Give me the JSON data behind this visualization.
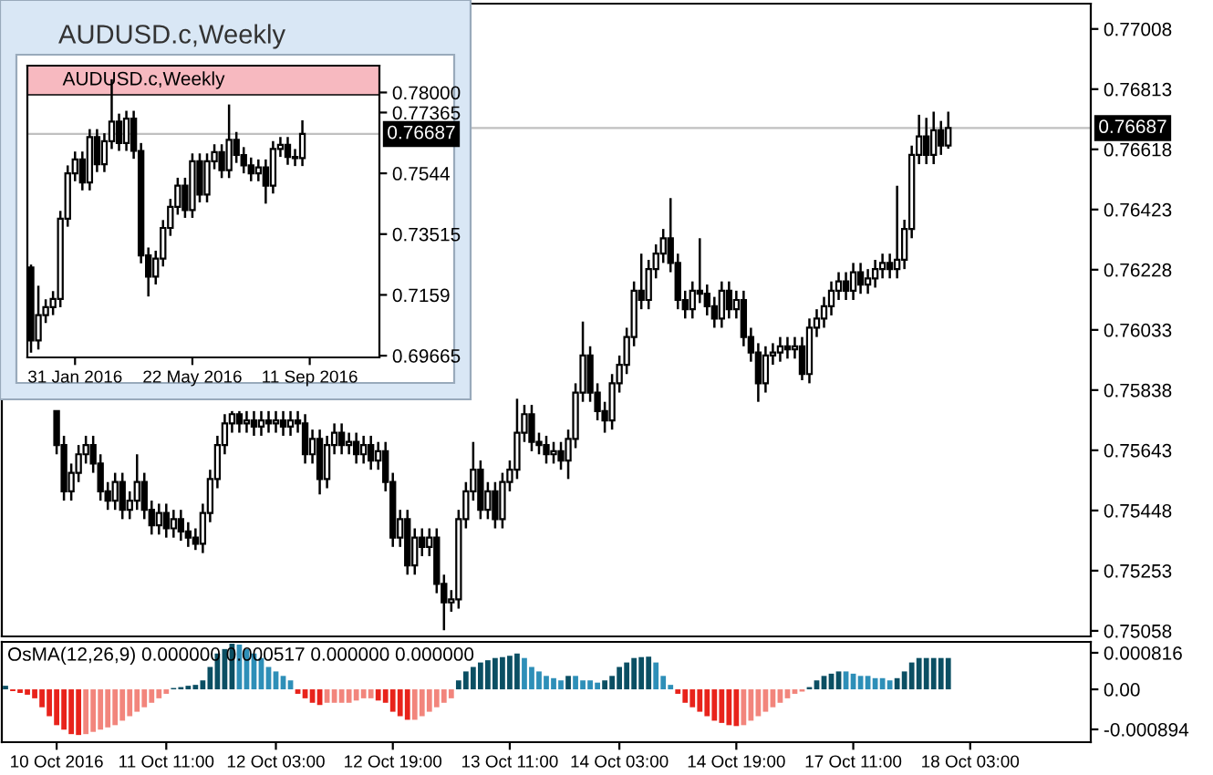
{
  "chart_data": [
    {
      "type": "candlestick",
      "categories": [
        null,
        null,
        null,
        null,
        null,
        null,
        null,
        null,
        null,
        null,
        null,
        null,
        null,
        null,
        null,
        null,
        null,
        null,
        null,
        null,
        null,
        null,
        null,
        null,
        null,
        null,
        null,
        null,
        null,
        null,
        null,
        null,
        null,
        null,
        null,
        null,
        null,
        null,
        null,
        null,
        null,
        null,
        null,
        null,
        null,
        null,
        null,
        null,
        null,
        null,
        null,
        null,
        null,
        null,
        null,
        null,
        null,
        null,
        null,
        null,
        null,
        null,
        null,
        null,
        null,
        null,
        null,
        null,
        null,
        null,
        null,
        null,
        null,
        null,
        null,
        null,
        null,
        null,
        null,
        null,
        null,
        null,
        null,
        null,
        null,
        null,
        null,
        null,
        null,
        null,
        null,
        null,
        null,
        null,
        null,
        null,
        null,
        null,
        null,
        null,
        null,
        null,
        null,
        null,
        null,
        null,
        null,
        null,
        null,
        null,
        null,
        null,
        null,
        null,
        null,
        null,
        null,
        null,
        null,
        null,
        null,
        null,
        null,
        null,
        null,
        null,
        null,
        null,
        null,
        null,
        null,
        null,
        null,
        null,
        null,
        null,
        null,
        null,
        null,
        null,
        null,
        null,
        null,
        null,
        null,
        null,
        null,
        null,
        null
      ],
      "ohlc": [
        null,
        null,
        null,
        null,
        null,
        null,
        null,
        [
          0.7577,
          0.7577,
          0.7563,
          0.7566
        ],
        [
          0.7566,
          0.7569,
          0.7548,
          0.7551
        ],
        [
          0.7551,
          0.756,
          0.7548,
          0.7557
        ],
        [
          0.7557,
          0.7566,
          0.7554,
          0.7563
        ],
        [
          0.7563,
          0.7569,
          0.756,
          0.7566
        ],
        [
          0.7566,
          0.7569,
          0.7557,
          0.756
        ],
        [
          0.756,
          0.7563,
          0.7548,
          0.7551
        ],
        [
          0.7551,
          0.7554,
          0.7545,
          0.7548
        ],
        [
          0.7548,
          0.7557,
          0.7545,
          0.7554
        ],
        [
          0.7554,
          0.7557,
          0.7542,
          0.7545
        ],
        [
          0.7545,
          0.7551,
          0.7542,
          0.7548
        ],
        [
          0.7548,
          0.7563,
          0.7545,
          0.7554
        ],
        [
          0.7554,
          0.7557,
          0.7542,
          0.7545
        ],
        [
          0.7545,
          0.7548,
          0.7537,
          0.754
        ],
        [
          0.754,
          0.7547,
          0.7537,
          0.7544
        ],
        [
          0.7544,
          0.7547,
          0.7536,
          0.7539
        ],
        [
          0.7539,
          0.7545,
          0.7536,
          0.7542
        ],
        [
          0.7542,
          0.7545,
          0.7535,
          0.7538
        ],
        [
          0.7538,
          0.7541,
          0.7533,
          0.7536
        ],
        [
          0.7536,
          0.7539,
          0.7532,
          0.7534
        ],
        [
          0.7534,
          0.7547,
          0.7531,
          0.7544
        ],
        [
          0.7544,
          0.7558,
          0.7541,
          0.7555
        ],
        [
          0.7555,
          0.7569,
          0.7552,
          0.7566
        ],
        [
          0.7566,
          0.7576,
          0.7563,
          0.7573
        ],
        [
          0.7573,
          0.7577,
          0.757,
          0.7576
        ],
        [
          0.7576,
          0.7577,
          0.757,
          0.7573
        ],
        [
          0.7573,
          0.7577,
          0.757,
          0.7574
        ],
        [
          0.7574,
          0.7577,
          0.7569,
          0.7572
        ],
        [
          0.7572,
          0.7577,
          0.7569,
          0.7574
        ],
        [
          0.7574,
          0.7577,
          0.757,
          0.7573
        ],
        [
          0.7573,
          0.7577,
          0.757,
          0.7574
        ],
        [
          0.7574,
          0.7577,
          0.7569,
          0.7572
        ],
        [
          0.7572,
          0.7577,
          0.7569,
          0.7574
        ],
        [
          0.7574,
          0.7577,
          0.757,
          0.7573
        ],
        [
          0.7573,
          0.7576,
          0.756,
          0.7563
        ],
        [
          0.7563,
          0.7571,
          0.756,
          0.7568
        ],
        [
          0.7568,
          0.7571,
          0.755,
          0.7555
        ],
        [
          0.7555,
          0.7569,
          0.7552,
          0.7566
        ],
        [
          0.7566,
          0.7573,
          0.7563,
          0.757
        ],
        [
          0.757,
          0.7573,
          0.7563,
          0.7566
        ],
        [
          0.7566,
          0.757,
          0.7563,
          0.7567
        ],
        [
          0.7567,
          0.757,
          0.756,
          0.7563
        ],
        [
          0.7563,
          0.7569,
          0.756,
          0.7566
        ],
        [
          0.7566,
          0.7569,
          0.7558,
          0.7561
        ],
        [
          0.7561,
          0.7567,
          0.7558,
          0.7564
        ],
        [
          0.7564,
          0.7567,
          0.7551,
          0.7554
        ],
        [
          0.7554,
          0.7557,
          0.7533,
          0.7536
        ],
        [
          0.7536,
          0.7545,
          0.7533,
          0.7542
        ],
        [
          0.7542,
          0.7545,
          0.7524,
          0.7527
        ],
        [
          0.7527,
          0.7539,
          0.7524,
          0.7536
        ],
        [
          0.7536,
          0.7539,
          0.753,
          0.7533
        ],
        [
          0.7533,
          0.7539,
          0.753,
          0.7536
        ],
        [
          0.7536,
          0.7539,
          0.7518,
          0.7521
        ],
        [
          0.7521,
          0.7524,
          0.7506,
          0.7515
        ],
        [
          0.7515,
          0.7519,
          0.7512,
          0.7516
        ],
        [
          0.7516,
          0.7545,
          0.7513,
          0.7542
        ],
        [
          0.7542,
          0.7554,
          0.7539,
          0.7551
        ],
        [
          0.7551,
          0.7567,
          0.7548,
          0.7558
        ],
        [
          0.7558,
          0.7561,
          0.7542,
          0.7545
        ],
        [
          0.7545,
          0.7554,
          0.7542,
          0.7551
        ],
        [
          0.7551,
          0.7554,
          0.7539,
          0.7542
        ],
        [
          0.7542,
          0.7557,
          0.7539,
          0.7554
        ],
        [
          0.7554,
          0.7561,
          0.7551,
          0.7558
        ],
        [
          0.7558,
          0.7581,
          0.7555,
          0.757
        ],
        [
          0.757,
          0.7579,
          0.7567,
          0.7576
        ],
        [
          0.7576,
          0.7579,
          0.7564,
          0.7567
        ],
        [
          0.7567,
          0.757,
          0.7563,
          0.7566
        ],
        [
          0.7566,
          0.7569,
          0.756,
          0.7563
        ],
        [
          0.7563,
          0.7567,
          0.756,
          0.7564
        ],
        [
          0.7564,
          0.7567,
          0.7558,
          0.7561
        ],
        [
          0.7561,
          0.7571,
          0.7555,
          0.7568
        ],
        [
          0.7568,
          0.7586,
          0.7565,
          0.7583
        ],
        [
          0.7583,
          0.7606,
          0.758,
          0.7595
        ],
        [
          0.7595,
          0.7598,
          0.758,
          0.7583
        ],
        [
          0.7583,
          0.7586,
          0.7574,
          0.7577
        ],
        [
          0.7577,
          0.758,
          0.757,
          0.7574
        ],
        [
          0.7574,
          0.7589,
          0.7571,
          0.7586
        ],
        [
          0.7586,
          0.7595,
          0.7583,
          0.7592
        ],
        [
          0.7592,
          0.7604,
          0.7589,
          0.7601
        ],
        [
          0.7601,
          0.7619,
          0.7598,
          0.7616
        ],
        [
          0.7616,
          0.7628,
          0.761,
          0.7613
        ],
        [
          0.7613,
          0.7626,
          0.761,
          0.7623
        ],
        [
          0.7623,
          0.7631,
          0.762,
          0.7628
        ],
        [
          0.7628,
          0.7636,
          0.7625,
          0.7633
        ],
        [
          0.7633,
          0.7646,
          0.7622,
          0.7625
        ],
        [
          0.7625,
          0.7628,
          0.761,
          0.7613
        ],
        [
          0.7613,
          0.7616,
          0.7607,
          0.761
        ],
        [
          0.761,
          0.7619,
          0.7607,
          0.7616
        ],
        [
          0.7616,
          0.7633,
          0.7612,
          0.7615
        ],
        [
          0.7615,
          0.7618,
          0.7608,
          0.7611
        ],
        [
          0.7611,
          0.7614,
          0.7604,
          0.7607
        ],
        [
          0.7607,
          0.7619,
          0.7604,
          0.7616
        ],
        [
          0.7616,
          0.7619,
          0.7607,
          0.761
        ],
        [
          0.761,
          0.7616,
          0.7607,
          0.7613
        ],
        [
          0.7613,
          0.7616,
          0.7598,
          0.7601
        ],
        [
          0.7601,
          0.7604,
          0.7593,
          0.7596
        ],
        [
          0.7596,
          0.7599,
          0.758,
          0.7586
        ],
        [
          0.7586,
          0.7598,
          0.7583,
          0.7595
        ],
        [
          0.7595,
          0.7599,
          0.7592,
          0.7596
        ],
        [
          0.7596,
          0.7601,
          0.7593,
          0.7598
        ],
        [
          0.7598,
          0.7601,
          0.7594,
          0.7597
        ],
        [
          0.7597,
          0.7601,
          0.7594,
          0.7598
        ],
        [
          0.7598,
          0.7601,
          0.7587,
          0.7589
        ],
        [
          0.7589,
          0.7607,
          0.7586,
          0.7604
        ],
        [
          0.7604,
          0.761,
          0.7601,
          0.7607
        ],
        [
          0.7607,
          0.7614,
          0.7604,
          0.7611
        ],
        [
          0.7611,
          0.7619,
          0.7608,
          0.7616
        ],
        [
          0.7616,
          0.7622,
          0.7613,
          0.7619
        ],
        [
          0.7619,
          0.7622,
          0.7613,
          0.7616
        ],
        [
          0.7616,
          0.7625,
          0.7613,
          0.7622
        ],
        [
          0.7622,
          0.7625,
          0.7615,
          0.7618
        ],
        [
          0.7618,
          0.7623,
          0.7615,
          0.762
        ],
        [
          0.762,
          0.7626,
          0.7617,
          0.7623
        ],
        [
          0.7623,
          0.7628,
          0.762,
          0.7625
        ],
        [
          0.7625,
          0.7628,
          0.762,
          0.7623
        ],
        [
          0.7623,
          0.765,
          0.762,
          0.7626
        ],
        [
          0.7626,
          0.7639,
          0.7623,
          0.7636
        ],
        [
          0.7636,
          0.7663,
          0.7633,
          0.766
        ],
        [
          0.766,
          0.7673,
          0.7657,
          0.7666
        ],
        [
          0.7666,
          0.7672,
          0.7657,
          0.766
        ],
        [
          0.766,
          0.7674,
          0.7657,
          0.7668
        ],
        [
          0.7668,
          0.7671,
          0.766,
          0.7663
        ],
        [
          0.7663,
          0.7674,
          0.7662,
          0.76687
        ],
        null,
        null,
        null,
        null,
        null,
        null,
        null,
        null,
        null,
        null,
        null,
        null,
        null,
        null,
        null,
        null,
        null,
        null,
        null
      ],
      "ylim": [
        0.7504,
        0.7709
      ],
      "yticks": [
        0.77008,
        0.76813,
        0.76618,
        0.76423,
        0.76228,
        0.76033,
        0.75838,
        0.75643,
        0.75448,
        0.75253,
        0.75058
      ],
      "ref_lines": [
        {
          "axis": "y",
          "value": 0.76687,
          "label": "0.76687",
          "color": "#c0c0c0"
        }
      ],
      "tick_labels": "y"
    },
    {
      "type": "bar",
      "title": "OsMA(12,26,9) 0.000000 0.000517 0.000000 0.000000",
      "categories": [
        null,
        null,
        null,
        null,
        null,
        null,
        null,
        "10 Oct 2016",
        null,
        null,
        null,
        null,
        null,
        null,
        null,
        null,
        null,
        null,
        null,
        null,
        null,
        null,
        "11 Oct 11:00",
        null,
        null,
        null,
        null,
        null,
        null,
        null,
        null,
        null,
        null,
        null,
        null,
        null,
        null,
        "12 Oct 03:00",
        null,
        null,
        null,
        null,
        null,
        null,
        null,
        null,
        null,
        null,
        null,
        null,
        null,
        null,
        null,
        "12 Oct 19:00",
        null,
        null,
        null,
        null,
        null,
        null,
        null,
        null,
        null,
        null,
        null,
        null,
        null,
        null,
        null,
        "13 Oct 11:00",
        null,
        null,
        null,
        null,
        null,
        null,
        null,
        null,
        null,
        null,
        null,
        null,
        null,
        null,
        "14 Oct 03:00",
        null,
        null,
        null,
        null,
        null,
        null,
        null,
        null,
        null,
        null,
        null,
        null,
        null,
        null,
        null,
        "14 Oct 19:00",
        null,
        null,
        null,
        null,
        null,
        null,
        null,
        null,
        null,
        null,
        null,
        null,
        null,
        null,
        null,
        "17 Oct 11:00",
        null,
        null,
        null,
        null,
        null,
        null,
        null,
        null,
        null,
        null,
        null,
        null,
        null,
        null,
        null,
        "18 Oct 03:00",
        null,
        null,
        null,
        null,
        null,
        null,
        null,
        null,
        null,
        null,
        null,
        null,
        null,
        null,
        null,
        null
      ],
      "values": [
        8e-05,
        -4e-05,
        -8e-05,
        -0.00012,
        -0.0002,
        -0.0004,
        -0.0006,
        -0.0008,
        -0.0009,
        -0.001,
        -0.00102,
        -0.001,
        -0.00095,
        -0.0009,
        -0.00085,
        -0.0008,
        -0.0007,
        -0.0006,
        -0.0005,
        -0.0004,
        -0.0003,
        -0.0002,
        -0.0001,
        3e-05,
        5e-05,
        8e-05,
        0.0001,
        0.0002,
        0.0005,
        0.0008,
        0.0009,
        0.00102,
        0.001,
        0.0009,
        0.0008,
        0.0007,
        0.0005,
        0.0004,
        0.0003,
        0.0002,
        -0.0001,
        -0.0002,
        -0.0003,
        -0.00035,
        -0.0003,
        -0.0003,
        -0.0003,
        -0.0003,
        -0.00025,
        -0.0002,
        -0.0002,
        -0.00025,
        -0.0003,
        -0.0005,
        -0.0006,
        -0.00068,
        -0.00068,
        -0.0006,
        -0.0005,
        -0.0004,
        -0.0003,
        -0.0002,
        0.0002,
        0.0004,
        0.0005,
        0.0006,
        0.00065,
        0.0007,
        0.00072,
        0.00075,
        0.0008,
        0.0007,
        0.0005,
        0.0004,
        0.0003,
        0.00025,
        0.0002,
        0.0003,
        0.0003,
        0.0002,
        0.0002,
        0.00015,
        0.0002,
        0.0003,
        0.0005,
        0.0006,
        0.0007,
        0.00072,
        0.00073,
        0.0006,
        0.0003,
        0.0001,
        -0.0001,
        -0.0003,
        -0.0004,
        -0.0005,
        -0.0006,
        -0.0007,
        -0.00075,
        -0.0008,
        -0.00082,
        -0.0008,
        -0.0007,
        -0.0006,
        -0.0005,
        -0.0004,
        -0.0003,
        -0.0002,
        -0.0001,
        -5e-05,
        5e-05,
        0.0002,
        0.0003,
        0.00035,
        0.0004,
        0.0004,
        0.00035,
        0.0003,
        0.0003,
        0.00025,
        0.00025,
        0.0002,
        0.00025,
        0.0004,
        0.0006,
        0.0007,
        0.0007,
        0.0007,
        0.0007,
        0.0007,
        null,
        null,
        null,
        null,
        null,
        null,
        null,
        null,
        null,
        null,
        null,
        null,
        null,
        null,
        null,
        null,
        null,
        null,
        null
      ],
      "colors": [
        "#0b4f63",
        "#e8231b",
        "#e8231b",
        "#e8231b",
        "#e8231b",
        "#e8231b",
        "#e8231b",
        "#e8231b",
        "#e8231b",
        "#e8231b",
        "#e8231b",
        "#f2857c",
        "#f2857c",
        "#f2857c",
        "#f2857c",
        "#f2857c",
        "#f2857c",
        "#f2857c",
        "#f2857c",
        "#f2857c",
        "#f2857c",
        "#f2857c",
        "#f2857c",
        "#0b4f63",
        "#0b4f63",
        "#0b4f63",
        "#0b4f63",
        "#0b4f63",
        "#0b4f63",
        "#0b4f63",
        "#0b4f63",
        "#0b4f63",
        "#2e8fb8",
        "#2e8fb8",
        "#2e8fb8",
        "#2e8fb8",
        "#2e8fb8",
        "#2e8fb8",
        "#2e8fb8",
        "#2e8fb8",
        "#e8231b",
        "#e8231b",
        "#e8231b",
        "#e8231b",
        "#f2857c",
        "#f2857c",
        "#f2857c",
        "#f2857c",
        "#f2857c",
        "#f2857c",
        "#f2857c",
        "#e8231b",
        "#e8231b",
        "#e8231b",
        "#e8231b",
        "#e8231b",
        "#f2857c",
        "#f2857c",
        "#f2857c",
        "#f2857c",
        "#f2857c",
        "#f2857c",
        "#0b4f63",
        "#0b4f63",
        "#0b4f63",
        "#0b4f63",
        "#0b4f63",
        "#0b4f63",
        "#0b4f63",
        "#0b4f63",
        "#0b4f63",
        "#2e8fb8",
        "#2e8fb8",
        "#2e8fb8",
        "#2e8fb8",
        "#2e8fb8",
        "#2e8fb8",
        "#0b4f63",
        "#2e8fb8",
        "#2e8fb8",
        "#2e8fb8",
        "#2e8fb8",
        "#0b4f63",
        "#0b4f63",
        "#0b4f63",
        "#0b4f63",
        "#0b4f63",
        "#0b4f63",
        "#0b4f63",
        "#2e8fb8",
        "#2e8fb8",
        "#2e8fb8",
        "#e8231b",
        "#e8231b",
        "#e8231b",
        "#e8231b",
        "#e8231b",
        "#e8231b",
        "#e8231b",
        "#e8231b",
        "#e8231b",
        "#f2857c",
        "#f2857c",
        "#f2857c",
        "#f2857c",
        "#f2857c",
        "#f2857c",
        "#f2857c",
        "#f2857c",
        "#f2857c",
        "#0b4f63",
        "#0b4f63",
        "#0b4f63",
        "#0b4f63",
        "#0b4f63",
        "#2e8fb8",
        "#2e8fb8",
        "#2e8fb8",
        "#2e8fb8",
        "#2e8fb8",
        "#2e8fb8",
        "#2e8fb8",
        "#0b4f63",
        "#0b4f63",
        "#0b4f63",
        "#0b4f63",
        "#0b4f63",
        "#0b4f63",
        "#0b4f63",
        "#0b4f63",
        null,
        null,
        null,
        null,
        null,
        null,
        null,
        null,
        null,
        null,
        null,
        null,
        null,
        null,
        null,
        null,
        null,
        null,
        null
      ],
      "ylim": [
        -0.00118,
        0.00106
      ],
      "yticks": [
        0.000816,
        {
          "value": 0,
          "label": "0.00"
        },
        -0.000894
      ]
    },
    {
      "type": "candlestick",
      "title": "AUDUSD.c,Weekly",
      "subtitle": "AUDUSD.c,Weekly",
      "categories": [
        null,
        null,
        null,
        null,
        null,
        null,
        "31 Jan 2016",
        null,
        null,
        null,
        null,
        null,
        null,
        null,
        null,
        null,
        null,
        null,
        null,
        null,
        null,
        null,
        "22 May 2016",
        null,
        null,
        null,
        null,
        null,
        null,
        null,
        null,
        null,
        null,
        null,
        null,
        null,
        null,
        null,
        "11 Sep 2016",
        null,
        null,
        null,
        null,
        null,
        null,
        null,
        null,
        null
      ],
      "ohlc": [
        [
          0.7246,
          0.7255,
          0.6976,
          0.7015
        ],
        [
          0.7015,
          0.7188,
          0.6986,
          0.7095
        ],
        [
          0.7095,
          0.7145,
          0.707,
          0.712
        ],
        [
          0.712,
          0.7171,
          0.7095,
          0.7146
        ],
        [
          0.7146,
          0.7425,
          0.712,
          0.74
        ],
        [
          0.74,
          0.7569,
          0.7375,
          0.7544
        ],
        [
          0.7544,
          0.7613,
          0.7519,
          0.7588
        ],
        [
          0.7588,
          0.7613,
          0.749,
          0.7515
        ],
        [
          0.7515,
          0.7684,
          0.749,
          0.7659
        ],
        [
          0.7659,
          0.7684,
          0.7548,
          0.7573
        ],
        [
          0.7573,
          0.7671,
          0.7548,
          0.7646
        ],
        [
          0.7646,
          0.7842,
          0.7621,
          0.7708
        ],
        [
          0.7708,
          0.7733,
          0.7615,
          0.764
        ],
        [
          0.764,
          0.7742,
          0.7615,
          0.7717
        ],
        [
          0.7717,
          0.7742,
          0.759,
          0.7615
        ],
        [
          0.7615,
          0.764,
          0.7259,
          0.7284
        ],
        [
          0.7284,
          0.7309,
          0.7154,
          0.7217
        ],
        [
          0.7217,
          0.7299,
          0.7192,
          0.7274
        ],
        [
          0.7274,
          0.7396,
          0.7249,
          0.7371
        ],
        [
          0.7371,
          0.7463,
          0.7346,
          0.7438
        ],
        [
          0.7438,
          0.753,
          0.7413,
          0.7505
        ],
        [
          0.7505,
          0.753,
          0.7403,
          0.7428
        ],
        [
          0.7428,
          0.7607,
          0.7403,
          0.7582
        ],
        [
          0.7582,
          0.7607,
          0.7452,
          0.7477
        ],
        [
          0.7477,
          0.7607,
          0.7452,
          0.7582
        ],
        [
          0.7582,
          0.7636,
          0.7557,
          0.7611
        ],
        [
          0.7611,
          0.7636,
          0.7529,
          0.7554
        ],
        [
          0.7554,
          0.7762,
          0.7529,
          0.765
        ],
        [
          0.765,
          0.7675,
          0.7577,
          0.7602
        ],
        [
          0.7602,
          0.7627,
          0.7544,
          0.7569
        ],
        [
          0.7569,
          0.7594,
          0.7519,
          0.7544
        ],
        [
          0.7544,
          0.7588,
          0.7519,
          0.7563
        ],
        [
          0.7563,
          0.7588,
          0.7448,
          0.7505
        ],
        [
          0.7505,
          0.7646,
          0.748,
          0.7621
        ],
        [
          0.7621,
          0.7659,
          0.7596,
          0.7634
        ],
        [
          0.7634,
          0.7659,
          0.7571,
          0.7596
        ],
        [
          0.7596,
          0.7621,
          0.7567,
          0.7592
        ],
        [
          0.7592,
          0.7712,
          0.7567,
          0.76687
        ],
        null,
        null,
        null,
        null,
        null,
        null,
        null,
        null,
        null,
        null
      ],
      "ylim": [
        0.6961,
        0.7885
      ],
      "yticks": [
        {
          "value": 0.78,
          "label": "0.78000"
        },
        0.77365,
        0.7544,
        0.73515,
        0.7159,
        0.69665
      ],
      "ref_lines": [
        {
          "axis": "y",
          "value": 0.76687,
          "label": "0.76687",
          "color": "#c0c0c0"
        }
      ]
    }
  ]
}
